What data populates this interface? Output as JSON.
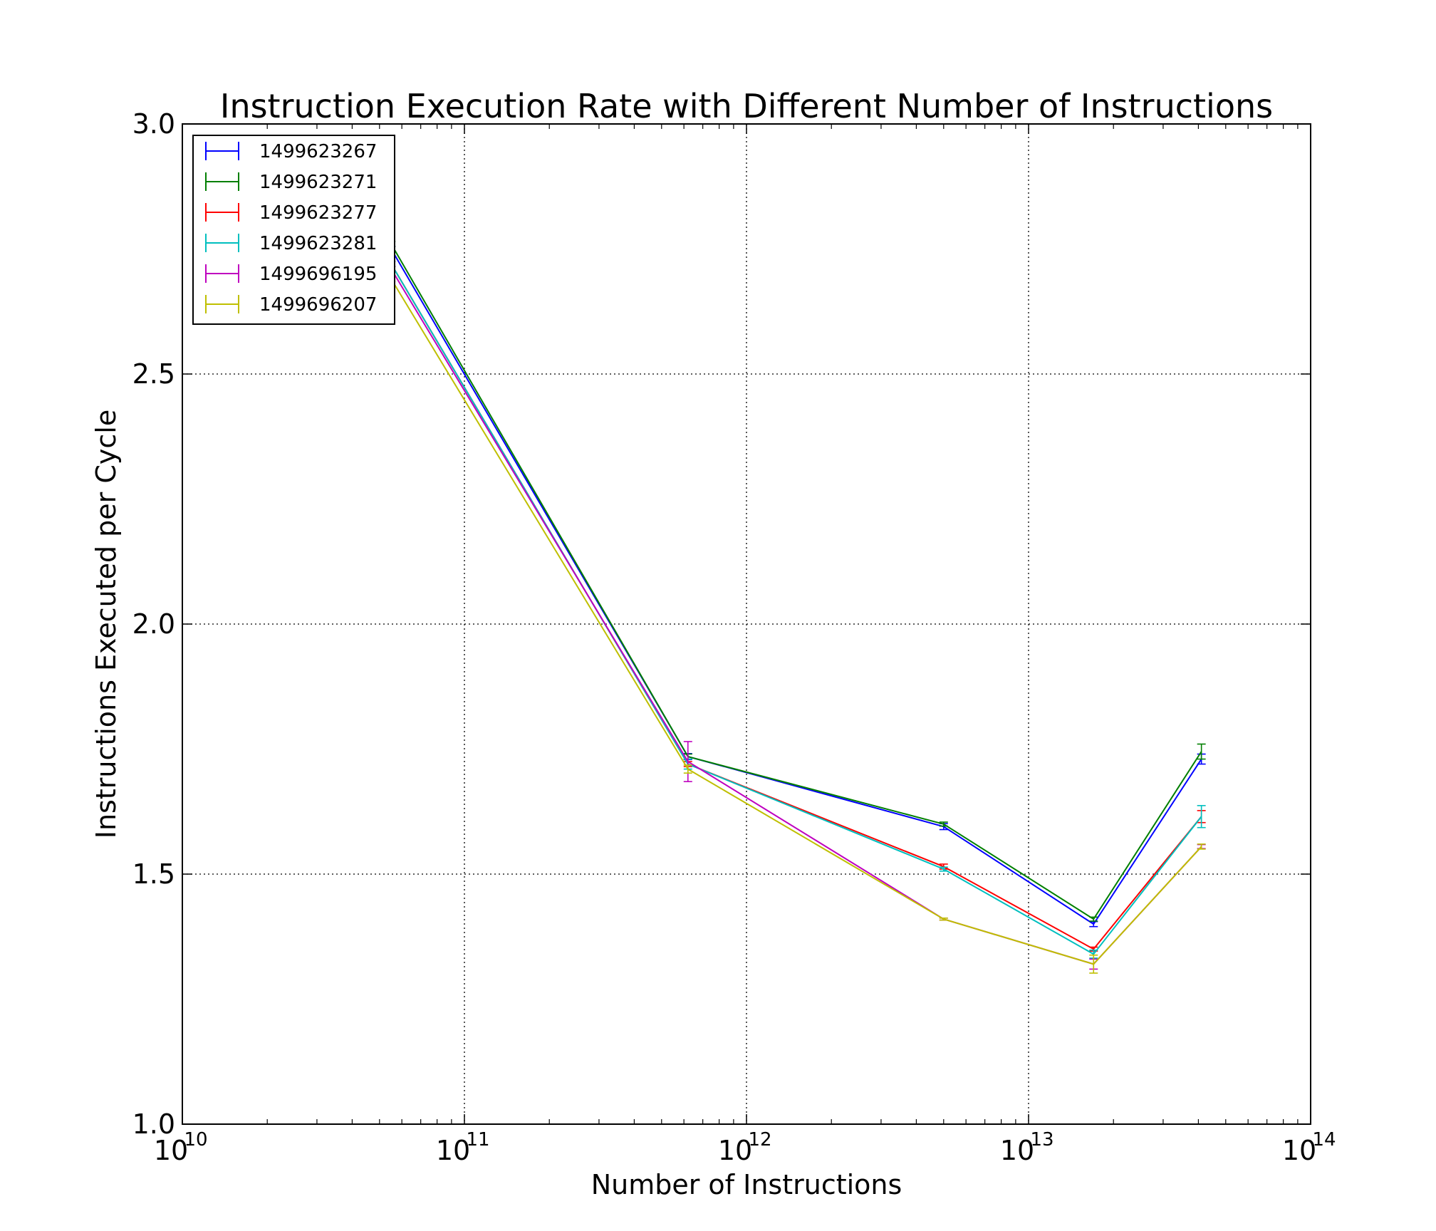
{
  "chart_data": {
    "type": "line",
    "title": "Instruction Execution Rate with Different Number of Instructions",
    "xlabel": "Number of Instructions",
    "ylabel": "Instructions Executed per Cycle",
    "xscale": "log",
    "xlim": [
      10000000000.0,
      100000000000000.0
    ],
    "ylim": [
      1.0,
      3.0
    ],
    "grid": true,
    "legend_position": "upper-left",
    "x_ticks": [
      {
        "base": "10",
        "exp": "10",
        "value": 10000000000.0
      },
      {
        "base": "10",
        "exp": "11",
        "value": 100000000000.0
      },
      {
        "base": "10",
        "exp": "12",
        "value": 1000000000000.0
      },
      {
        "base": "10",
        "exp": "13",
        "value": 10000000000000.0
      },
      {
        "base": "10",
        "exp": "14",
        "value": 100000000000000.0
      }
    ],
    "y_ticks": [
      {
        "label": "1.0",
        "value": 1.0
      },
      {
        "label": "1.5",
        "value": 1.5
      },
      {
        "label": "2.0",
        "value": 2.0
      },
      {
        "label": "2.5",
        "value": 2.5
      },
      {
        "label": "3.0",
        "value": 3.0
      }
    ],
    "x": [
      55000000000.0,
      620000000000.0,
      5000000000000.0,
      17000000000000.0,
      41000000000000.0
    ],
    "series": [
      {
        "name": "1499623267",
        "color": "#0000ff",
        "values": [
          2.75,
          1.735,
          1.595,
          1.4,
          1.73
        ],
        "errors": [
          0.005,
          0.006,
          0.006,
          0.005,
          0.01
        ]
      },
      {
        "name": "1499623271",
        "color": "#007f00",
        "values": [
          2.76,
          1.735,
          1.6,
          1.41,
          1.745
        ],
        "errors": [
          0.005,
          0.005,
          0.004,
          0.004,
          0.015
        ]
      },
      {
        "name": "1499623277",
        "color": "#ff0000",
        "values": [
          2.72,
          1.72,
          1.515,
          1.35,
          1.615
        ],
        "errors": [
          0.005,
          0.005,
          0.005,
          0.004,
          0.012
        ]
      },
      {
        "name": "1499623281",
        "color": "#00bfbf",
        "values": [
          2.72,
          1.72,
          1.51,
          1.34,
          1.615
        ],
        "errors": [
          0.005,
          0.01,
          0.004,
          0.008,
          0.022
        ]
      },
      {
        "name": "1499696195",
        "color": "#bf00bf",
        "values": [
          2.71,
          1.725,
          1.41,
          1.32,
          1.555
        ],
        "errors": [
          0.005,
          0.04,
          0.002,
          0.01,
          0.004
        ]
      },
      {
        "name": "1499696207",
        "color": "#bfbf00",
        "values": [
          2.69,
          1.71,
          1.41,
          1.32,
          1.555
        ],
        "errors": [
          0.005,
          0.008,
          0.002,
          0.018,
          0.005
        ]
      }
    ]
  }
}
